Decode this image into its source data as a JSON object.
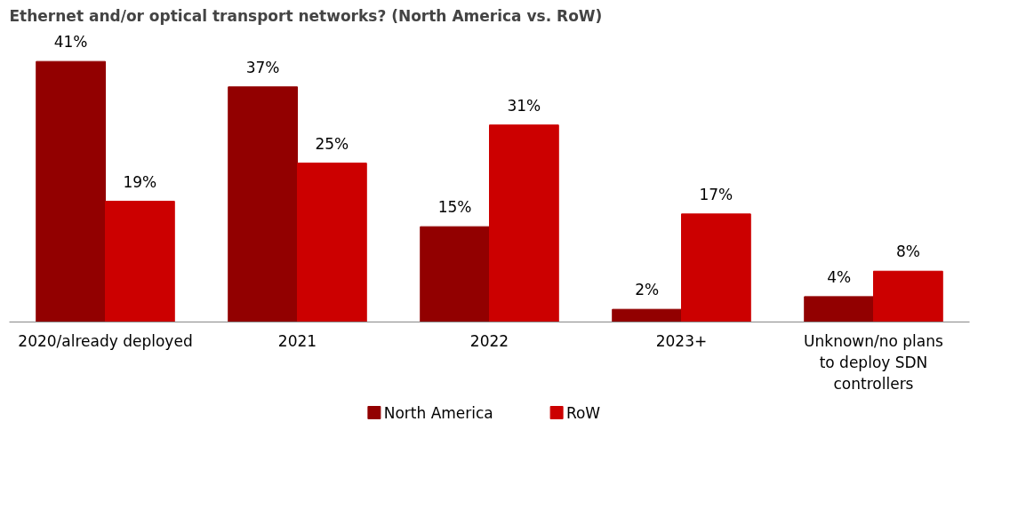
{
  "chart_data": {
    "type": "bar",
    "title": "Ethernet and/or optical transport networks? (North America vs. RoW)",
    "categories": [
      "2020/already deployed",
      "2021",
      "2022",
      "2023+",
      "Unknown/no plans to deploy SDN controllers"
    ],
    "series": [
      {
        "name": "North America",
        "color": "#920000",
        "values": [
          41,
          37,
          15,
          2,
          4
        ],
        "value_labels": [
          "41%",
          "37%",
          "15%",
          "2%",
          "4%"
        ]
      },
      {
        "name": "RoW",
        "color": "#cc0000",
        "values": [
          19,
          25,
          31,
          17,
          8
        ],
        "value_labels": [
          "19%",
          "25%",
          "31%",
          "17%",
          "8%"
        ]
      }
    ],
    "tick_labels": "x",
    "legend": "bottom"
  }
}
